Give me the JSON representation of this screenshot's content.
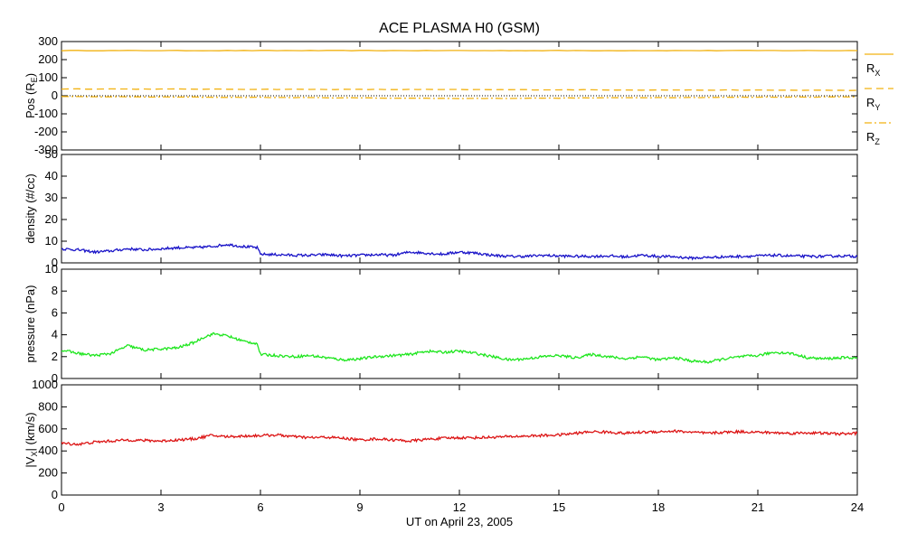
{
  "chart_data": {
    "title": "ACE PLASMA H0 (GSM)",
    "xlabel": "UT on April 23, 2005",
    "x_ticks": [
      0,
      3,
      6,
      9,
      12,
      15,
      18,
      21,
      24
    ],
    "xlim": [
      0,
      24
    ],
    "panels": [
      {
        "id": "pos",
        "type": "line",
        "ylabel_main": "Pos (R",
        "ylabel_sub": "E",
        "ylabel_end": ")",
        "ylim": [
          -300,
          300
        ],
        "y_ticks": [
          300,
          200,
          100,
          0,
          -100,
          -200,
          -300
        ],
        "series": [
          {
            "name": "R",
            "sub": "X",
            "color": "#f2b211",
            "style": "solid",
            "x": [
              0,
              24
            ],
            "y": [
              250,
              250
            ]
          },
          {
            "name": "R",
            "sub": "Y",
            "color": "#f2b211",
            "style": "dashed",
            "x": [
              0,
              3,
              6,
              9,
              12,
              15,
              18,
              21,
              24
            ],
            "y": [
              38,
              37,
              36,
              35,
              34,
              33,
              32,
              31,
              30
            ]
          },
          {
            "name": "R",
            "sub": "Z",
            "color": "#f2b211",
            "style": "dashdot",
            "x": [
              0,
              3,
              6,
              9,
              12,
              15,
              18,
              21,
              24
            ],
            "y": [
              -5,
              -7,
              -9,
              -12,
              -15,
              -13,
              -10,
              -8,
              -6
            ]
          }
        ],
        "zero_line": true
      },
      {
        "id": "density",
        "type": "line",
        "ylabel_main": "density (#/cc)",
        "ylim": [
          0,
          50
        ],
        "y_ticks": [
          50,
          40,
          30,
          20,
          10,
          0
        ],
        "series": [
          {
            "color": "#1a14c8",
            "x": [
              0,
              0.5,
              1,
              1.5,
              2,
              2.5,
              3,
              3.5,
              4,
              4.5,
              5,
              5.5,
              5.9,
              6,
              6.5,
              7,
              7.5,
              8,
              8.5,
              9,
              9.5,
              10,
              10.5,
              11,
              11.5,
              12,
              12.5,
              13,
              13.5,
              14,
              14.5,
              15,
              15.5,
              16,
              16.5,
              17,
              17.5,
              18,
              18.5,
              19,
              19.5,
              20,
              20.5,
              21,
              21.5,
              22,
              22.5,
              23,
              23.5,
              24
            ],
            "y": [
              6.5,
              6,
              5,
              5.5,
              6.5,
              6,
              6.5,
              7,
              7,
              7.5,
              8.5,
              7.5,
              7,
              4,
              3.8,
              3.5,
              3.5,
              3.8,
              3.2,
              3.5,
              3.8,
              3.5,
              5,
              4.5,
              4,
              5,
              4.5,
              3.5,
              3,
              3,
              3.5,
              3.2,
              3,
              3,
              3.2,
              2.8,
              3.5,
              3,
              2.8,
              2.2,
              2.5,
              2.8,
              3,
              3.2,
              3.5,
              3.2,
              3,
              3,
              3.2,
              3
            ]
          }
        ]
      },
      {
        "id": "pressure",
        "type": "line",
        "ylabel_main": "pressure (nPa)",
        "ylim": [
          0,
          10
        ],
        "y_ticks": [
          10,
          8,
          6,
          4,
          2,
          0
        ],
        "series": [
          {
            "color": "#1ee61e",
            "x": [
              0,
              0.5,
              1,
              1.5,
              2,
              2.5,
              3,
              3.5,
              4,
              4.3,
              4.6,
              5,
              5.5,
              5.9,
              6,
              6.5,
              7,
              7.5,
              8,
              8.5,
              9,
              9.5,
              10,
              10.5,
              11,
              11.5,
              12,
              12.5,
              13,
              13.5,
              14,
              14.5,
              15,
              15.5,
              16,
              16.5,
              17,
              17.5,
              18,
              18.5,
              19,
              19.5,
              20,
              20.5,
              21,
              21.5,
              22,
              22.5,
              23,
              23.5,
              24
            ],
            "y": [
              2.6,
              2.3,
              2.1,
              2.3,
              3.0,
              2.6,
              2.7,
              2.8,
              3.3,
              3.8,
              4.1,
              3.9,
              3.4,
              3.2,
              2.2,
              2.1,
              2.0,
              2.1,
              1.9,
              1.7,
              1.8,
              2.0,
              2.1,
              2.2,
              2.5,
              2.4,
              2.5,
              2.3,
              2.0,
              1.7,
              1.8,
              2.0,
              2.1,
              1.9,
              2.2,
              2.0,
              1.8,
              2.0,
              1.7,
              1.9,
              1.6,
              1.5,
              1.8,
              2.0,
              2.1,
              2.4,
              2.3,
              1.9,
              1.8,
              1.9,
              1.9
            ]
          }
        ]
      },
      {
        "id": "vx",
        "type": "line",
        "ylabel_main": "|V",
        "ylabel_sub": "X",
        "ylabel_end": "| (km/s)",
        "ylim": [
          0,
          1000
        ],
        "y_ticks": [
          1000,
          800,
          600,
          400,
          200,
          0
        ],
        "series": [
          {
            "color": "#dc1414",
            "x": [
              0,
              0.5,
              1,
              1.5,
              2,
              2.5,
              3,
              3.5,
              4,
              4.5,
              5,
              5.5,
              6,
              6.5,
              7,
              7.5,
              8,
              8.5,
              9,
              9.5,
              10,
              10.5,
              11,
              11.5,
              12,
              12.5,
              13,
              13.5,
              14,
              14.5,
              15,
              15.5,
              16,
              16.5,
              17,
              17.5,
              18,
              18.5,
              19,
              19.5,
              20,
              20.5,
              21,
              21.5,
              22,
              22.5,
              23,
              23.5,
              24
            ],
            "y": [
              470,
              460,
              480,
              490,
              500,
              495,
              490,
              500,
              510,
              540,
              530,
              535,
              540,
              545,
              530,
              520,
              525,
              515,
              500,
              510,
              500,
              490,
              505,
              515,
              520,
              520,
              525,
              530,
              535,
              540,
              545,
              560,
              575,
              570,
              560,
              570,
              575,
              580,
              570,
              560,
              570,
              575,
              570,
              565,
              560,
              565,
              560,
              555,
              560
            ]
          }
        ]
      }
    ]
  }
}
